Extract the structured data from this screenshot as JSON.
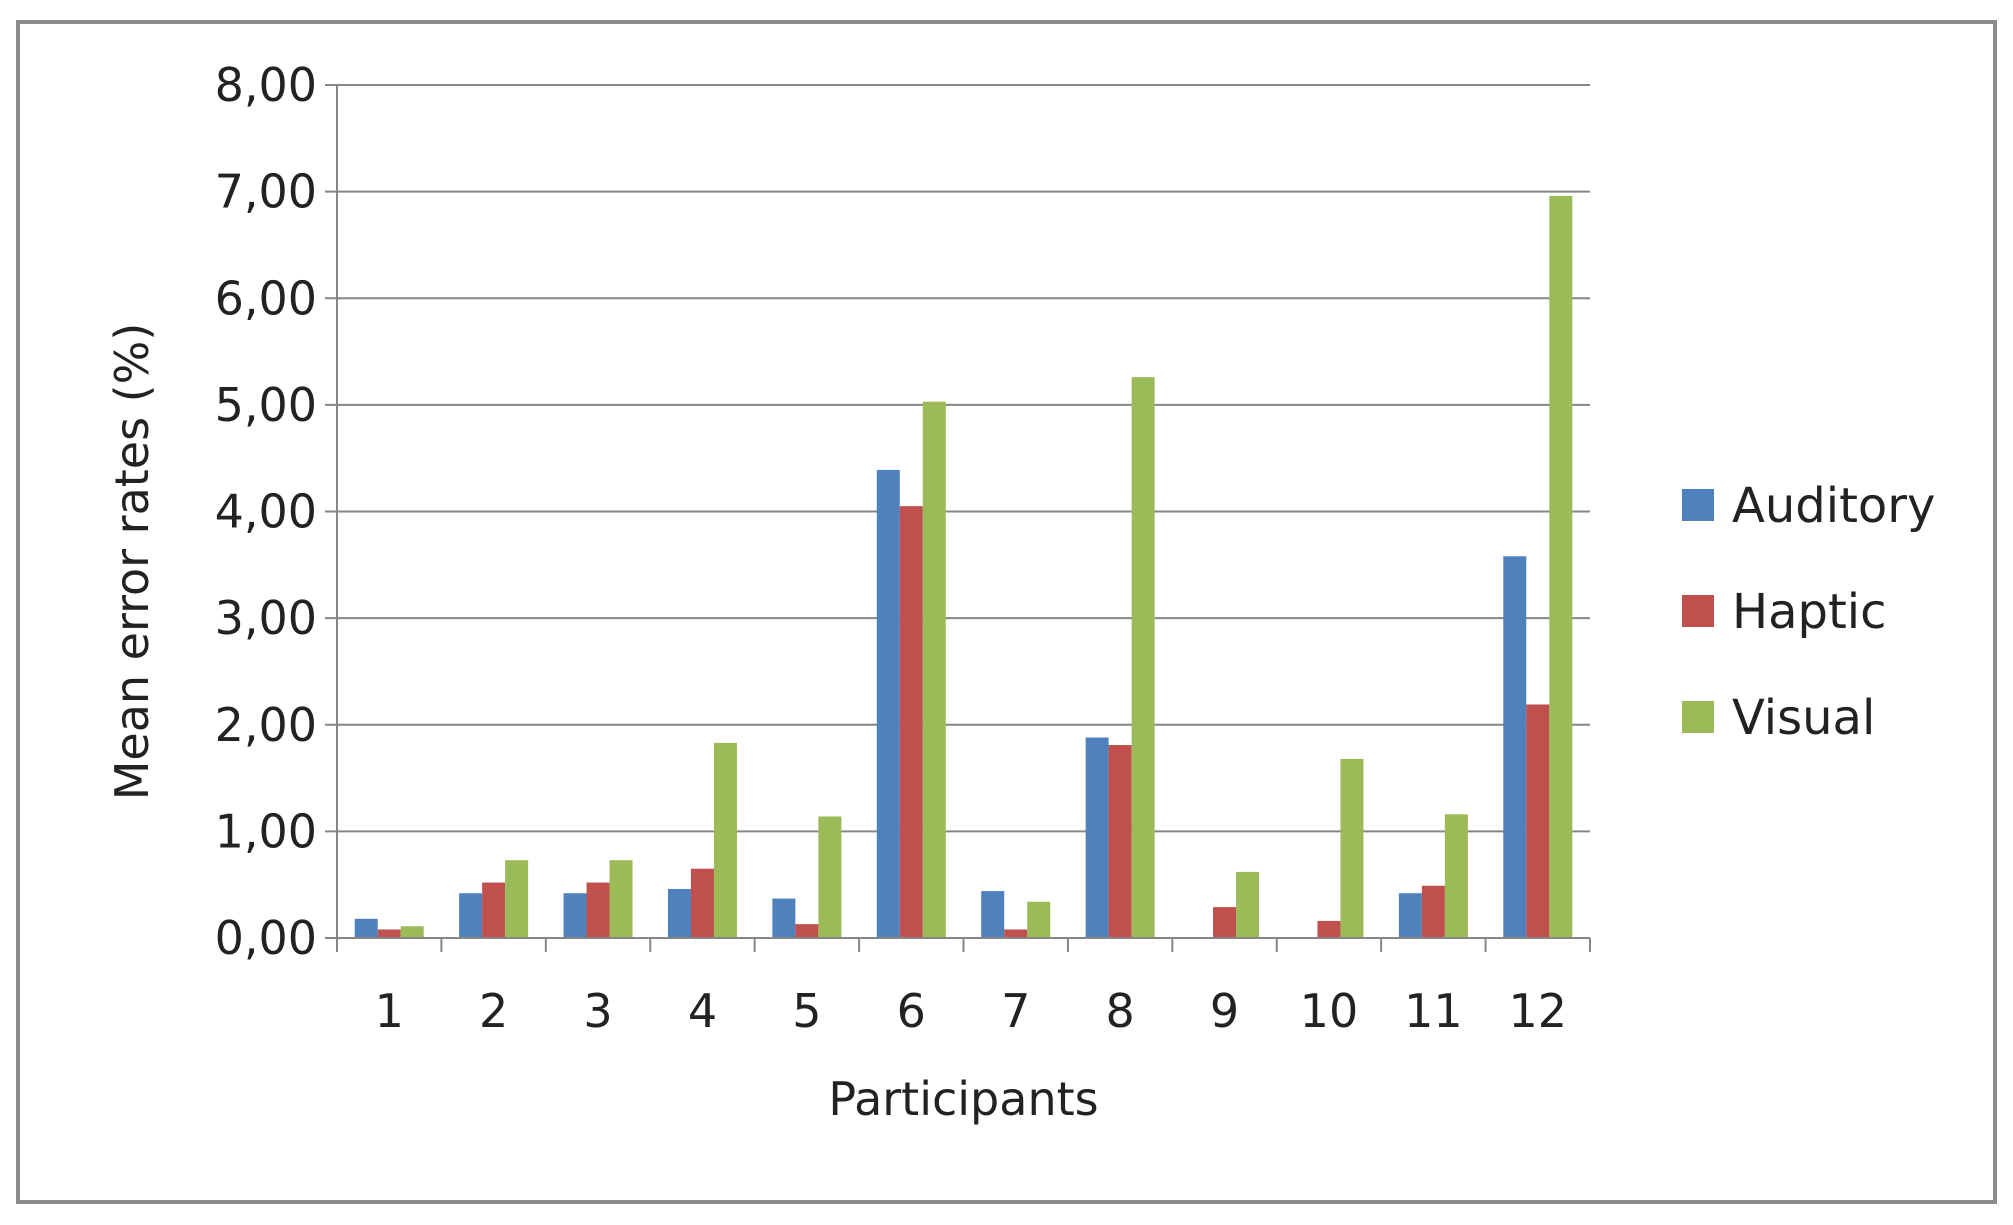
{
  "chart_data": {
    "type": "bar",
    "title": "",
    "xlabel": "Participants",
    "ylabel": "Mean error rates (%)",
    "ylim": [
      0,
      8
    ],
    "yticks": [
      "0,00",
      "1,00",
      "2,00",
      "3,00",
      "4,00",
      "5,00",
      "6,00",
      "7,00",
      "8,00"
    ],
    "grid": true,
    "legend_position": "right",
    "categories": [
      "1",
      "2",
      "3",
      "4",
      "5",
      "6",
      "7",
      "8",
      "9",
      "10",
      "11",
      "12"
    ],
    "series": [
      {
        "name": "Auditory",
        "color": "#4F81BD",
        "values": [
          0.18,
          0.42,
          0.42,
          0.46,
          0.37,
          4.39,
          0.44,
          1.88,
          0.0,
          0.0,
          0.42,
          3.58
        ]
      },
      {
        "name": "Haptic",
        "color": "#C0504D",
        "values": [
          0.08,
          0.52,
          0.52,
          0.65,
          0.13,
          4.05,
          0.08,
          1.81,
          0.29,
          0.16,
          0.49,
          2.19
        ]
      },
      {
        "name": "Visual",
        "color": "#9BBB59",
        "values": [
          0.11,
          0.73,
          0.73,
          1.83,
          1.14,
          5.03,
          0.34,
          5.26,
          0.62,
          1.68,
          1.16,
          6.96
        ]
      }
    ]
  }
}
